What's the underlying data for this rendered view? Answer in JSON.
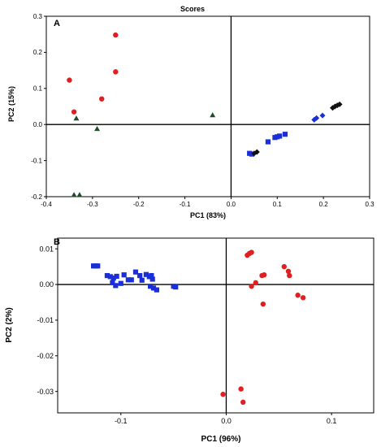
{
  "chart_data": [
    {
      "type": "scatter",
      "title": "Scores",
      "panel_label": "A",
      "xlabel": "PC1 (83%)",
      "ylabel": "PC2 (15%)",
      "xlim": [
        -0.4,
        0.3
      ],
      "ylim": [
        -0.2,
        0.3
      ],
      "x_ticks": [
        "-0.4",
        "-0.3",
        "-0.2",
        "-0.1",
        "0.0",
        "0.1",
        "0.2",
        "0.3"
      ],
      "y_ticks": [
        "-0.2",
        "-0.1",
        "0.0",
        "0.1",
        "0.2",
        "0.3"
      ],
      "grid": false,
      "series": [
        {
          "color": "#e02020",
          "marker": "circle",
          "points": [
            [
              -0.35,
              0.123
            ],
            [
              -0.34,
              0.035
            ],
            [
              -0.28,
              0.071
            ],
            [
              -0.25,
              0.248
            ],
            [
              -0.25,
              0.146
            ]
          ]
        },
        {
          "color": "#1f4d2b",
          "marker": "triangle",
          "points": [
            [
              -0.335,
              0.017
            ],
            [
              -0.29,
              -0.012
            ],
            [
              -0.04,
              0.026
            ],
            [
              -0.34,
              -0.195
            ],
            [
              -0.328,
              -0.195
            ]
          ]
        },
        {
          "color": "#1a2fd6",
          "marker": "square",
          "points": [
            [
              0.04,
              -0.08
            ],
            [
              0.045,
              -0.082
            ],
            [
              0.08,
              -0.048
            ],
            [
              0.1,
              -0.034
            ],
            [
              0.095,
              -0.036
            ],
            [
              0.105,
              -0.032
            ],
            [
              0.117,
              -0.027
            ]
          ]
        },
        {
          "color": "#1a2fd6",
          "marker": "diamond",
          "points": [
            [
              0.18,
              0.013
            ],
            [
              0.185,
              0.018
            ],
            [
              0.198,
              0.025
            ]
          ]
        },
        {
          "color": "#111111",
          "marker": "diamond",
          "points": [
            [
              0.05,
              -0.08
            ],
            [
              0.056,
              -0.076
            ],
            [
              0.22,
              0.046
            ],
            [
              0.225,
              0.05
            ],
            [
              0.23,
              0.053
            ],
            [
              0.235,
              0.056
            ]
          ]
        }
      ]
    },
    {
      "type": "scatter",
      "panel_label": "B",
      "xlabel": "PC1 (96%)",
      "ylabel": "PC2 (2%)",
      "xlim": [
        -0.16,
        0.14
      ],
      "ylim": [
        -0.036,
        0.013
      ],
      "x_ticks": [
        "-0.1",
        "0.0",
        "0.1"
      ],
      "y_ticks": [
        "0.01",
        "0.00",
        "-0.01",
        "-0.02",
        "-0.03"
      ],
      "grid": false,
      "series": [
        {
          "color": "#1a2fd6",
          "marker": "square",
          "points": [
            [
              -0.126,
              0.0052
            ],
            [
              -0.124,
              0.0052
            ],
            [
              -0.122,
              0.0052
            ],
            [
              -0.113,
              0.0025
            ],
            [
              -0.11,
              0.0022
            ],
            [
              -0.107,
              0.0018
            ],
            [
              -0.104,
              0.0023
            ],
            [
              -0.108,
              0.0005
            ],
            [
              -0.105,
              -0.0003
            ],
            [
              -0.1,
              0.0003
            ],
            [
              -0.097,
              0.0027
            ],
            [
              -0.093,
              0.0013
            ],
            [
              -0.09,
              0.0013
            ],
            [
              -0.086,
              0.0035
            ],
            [
              -0.082,
              0.0025
            ],
            [
              -0.08,
              0.0012
            ],
            [
              -0.076,
              0.0028
            ],
            [
              -0.073,
              0.0022
            ],
            [
              -0.071,
              0.0025
            ],
            [
              -0.07,
              0.0015
            ],
            [
              -0.072,
              -0.0005
            ],
            [
              -0.069,
              -0.001
            ],
            [
              -0.066,
              -0.0015
            ],
            [
              -0.05,
              -0.0005
            ],
            [
              -0.048,
              -0.0007
            ]
          ]
        },
        {
          "color": "#e02020",
          "marker": "circle",
          "points": [
            [
              0.02,
              0.0082
            ],
            [
              0.022,
              0.0087
            ],
            [
              0.024,
              0.009
            ],
            [
              0.024,
              -0.0005
            ],
            [
              0.028,
              0.0005
            ],
            [
              0.034,
              0.0025
            ],
            [
              0.036,
              0.0027
            ],
            [
              0.035,
              -0.0055
            ],
            [
              0.055,
              0.005
            ],
            [
              0.059,
              0.0037
            ],
            [
              0.06,
              0.0025
            ],
            [
              0.068,
              -0.003
            ],
            [
              0.073,
              -0.0037
            ],
            [
              -0.003,
              -0.0308
            ],
            [
              0.014,
              -0.0293
            ],
            [
              0.016,
              -0.033
            ]
          ]
        }
      ]
    }
  ]
}
